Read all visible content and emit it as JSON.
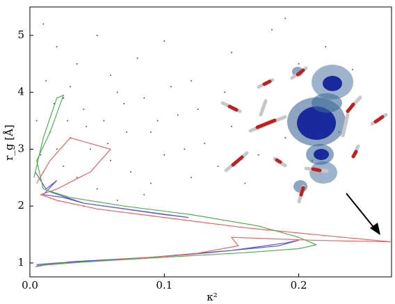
{
  "chart_data": {
    "type": "scatter",
    "x_label": "κ²",
    "y_label": "r_g [Å]",
    "xlim": [
      0,
      0.269
    ],
    "ylim": [
      0.755,
      5.5
    ],
    "xticks": [
      {
        "value": 0,
        "label": "0.0"
      },
      0.1,
      0.2
    ],
    "yticks": [
      1,
      2,
      3,
      4,
      5
    ],
    "points": {
      "color": "#555555",
      "x": [
        0.01,
        0.02,
        0.035,
        0.05,
        0.06,
        0.08,
        0.1,
        0.12,
        0.15,
        0.18,
        0.2,
        0.22,
        0.24,
        0.19,
        0.012,
        0.025,
        0.04,
        0.055,
        0.07,
        0.09,
        0.11,
        0.13,
        0.15,
        0.17,
        0.19,
        0.21,
        0.23,
        0.03,
        0.045,
        0.06,
        0.075,
        0.09,
        0.1,
        0.12,
        0.14,
        0.16,
        0.005,
        0.015,
        0.02,
        0.008,
        0.025,
        0.035,
        0.05,
        0.018,
        0.03,
        0.065,
        0.085,
        0.105,
        0.125,
        0.145,
        0.085,
        0.065,
        0.04,
        0.01,
        0.028,
        0.042,
        0.058,
        0.072,
        0.095,
        0.115
      ],
      "y": [
        5.2,
        4.8,
        4.5,
        5.0,
        4.3,
        4.6,
        4.9,
        4.2,
        4.7,
        5.1,
        4.5,
        4.8,
        4.4,
        5.3,
        4.2,
        3.9,
        3.7,
        3.5,
        3.8,
        3.3,
        3.6,
        3.1,
        3.4,
        2.9,
        3.2,
        2.8,
        3.3,
        3.2,
        3.0,
        2.8,
        2.6,
        2.4,
        2.9,
        2.5,
        2.7,
        2.4,
        3.5,
        3.3,
        3.0,
        2.9,
        2.7,
        2.5,
        2.3,
        3.8,
        4.1,
        4.0,
        3.9,
        4.1,
        3.7,
        4.0,
        2.2,
        2.1,
        2.0,
        2.6,
        3.5,
        3.4,
        3.1,
        3.3,
        3.5,
        3.0
      ]
    },
    "series": [
      {
        "color": "#5a5ad0",
        "x": [
          0.004,
          0.012,
          0.02,
          0.01,
          0.025,
          0.04,
          0.07,
          0.1,
          0.118,
          0.08,
          0.04,
          0.015,
          null,
          0.005,
          0.03,
          0.09,
          0.15,
          0.19,
          0.2,
          0.185,
          0.12,
          0.06,
          0.02,
          0.005
        ],
        "y": [
          2.6,
          2.3,
          2.45,
          2.2,
          2.15,
          2.05,
          1.95,
          1.85,
          1.8,
          1.92,
          2.05,
          2.25,
          null,
          0.95,
          1.02,
          1.1,
          1.22,
          1.35,
          1.4,
          1.3,
          1.15,
          1.05,
          1.0,
          0.97
        ]
      },
      {
        "color": "#f06060",
        "x": [
          0.005,
          0.015,
          0.03,
          0.06,
          0.045,
          0.02,
          0.008,
          0.02,
          0.05,
          0.1,
          0.16,
          0.22,
          0.269,
          0.21,
          0.15,
          0.155,
          0.12,
          0.06,
          0.02,
          0.005
        ],
        "y": [
          2.4,
          2.8,
          3.2,
          3.0,
          2.6,
          2.3,
          2.2,
          2.1,
          1.95,
          1.8,
          1.62,
          1.48,
          1.37,
          1.4,
          1.45,
          1.3,
          1.15,
          1.05,
          0.98,
          0.95
        ]
      },
      {
        "color": "#50b050",
        "x": [
          0.003,
          0.01,
          0.02,
          0.025,
          0.015,
          0.005,
          0.01,
          0.03,
          0.07,
          0.12,
          0.17,
          0.2,
          0.213,
          0.2,
          0.16,
          0.1,
          0.05,
          0.015,
          0.004
        ],
        "y": [
          2.5,
          3.2,
          3.9,
          3.95,
          3.3,
          2.8,
          2.3,
          2.15,
          2.0,
          1.85,
          1.65,
          1.45,
          1.32,
          1.25,
          1.18,
          1.1,
          1.03,
          0.98,
          0.93
        ]
      }
    ]
  }
}
